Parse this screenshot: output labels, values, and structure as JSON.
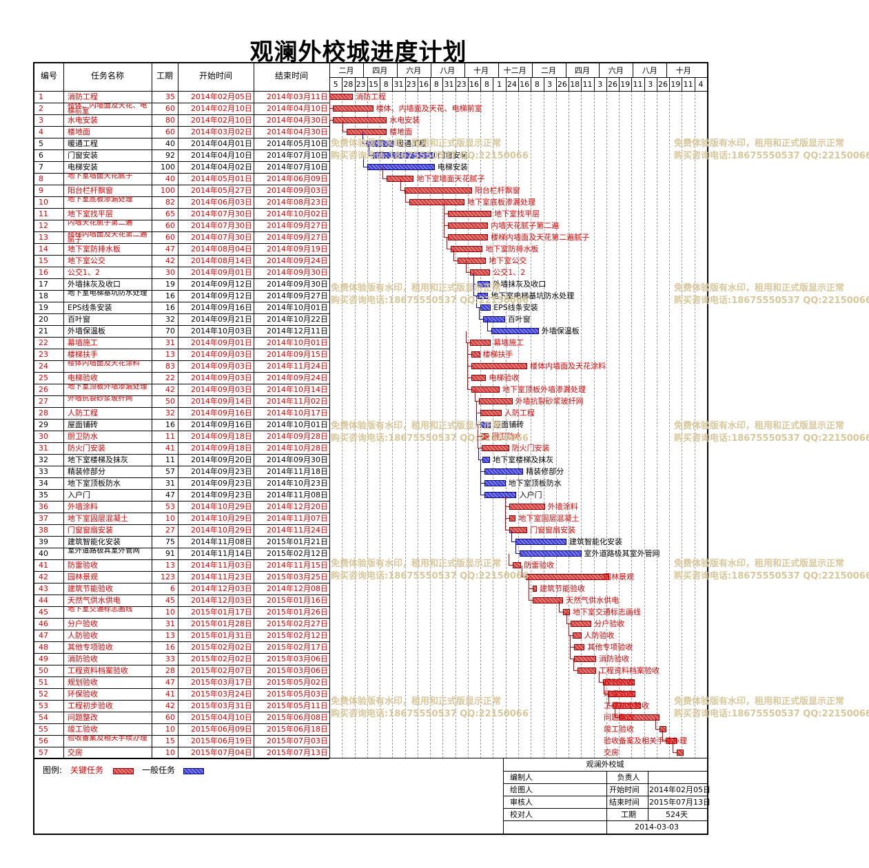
{
  "title": "观澜外校城进度计划",
  "colors": {
    "critical": "#d23b3b",
    "normal": "#3b3bd2",
    "critical_text": "#e00000",
    "normal_text": "#000000"
  },
  "headers": {
    "id": "编号",
    "name": "任务名称",
    "duration": "工期",
    "start": "开始时间",
    "end": "结束时间"
  },
  "timescale": {
    "months": [
      "二月",
      "四月",
      "六月",
      "八月",
      "十月",
      "十二月",
      "二月",
      "四月",
      "六月",
      "八月",
      "十月"
    ],
    "days": [
      "5",
      "28",
      "23",
      "15",
      "8",
      "31",
      "23",
      "16",
      "8",
      "31",
      "23",
      "16",
      "8",
      "1",
      "24",
      "16",
      "8",
      "3",
      "26",
      "18",
      "11",
      "3",
      "26",
      "19",
      "11",
      "3",
      "26",
      "19",
      "11",
      "4"
    ]
  },
  "chart_data": {
    "type": "gantt",
    "title": "观澜外校城进度计划",
    "tasks": [
      {
        "id": "1",
        "name": "消防工程",
        "duration": "35",
        "start": "2014年02月05日",
        "end": "2014年03月11日",
        "critical": true,
        "label": "消防工程"
      },
      {
        "id": "2",
        "name": "楼体、内墙面及天花、电梯前室",
        "duration": "60",
        "start": "2014年02月10日",
        "end": "2014年04月10日",
        "critical": true,
        "label": "楼体、内墙面及天花、电梯前室"
      },
      {
        "id": "3",
        "name": "水电安装",
        "duration": "80",
        "start": "2014年02月10日",
        "end": "2014年04月30日",
        "critical": true,
        "label": "水电安装"
      },
      {
        "id": "4",
        "name": "楼地面",
        "duration": "60",
        "start": "2014年03月02日",
        "end": "2014年04月30日",
        "critical": true,
        "label": "楼地面"
      },
      {
        "id": "5",
        "name": "暖通工程",
        "duration": "40",
        "start": "2014年04月01日",
        "end": "2014年05月10日",
        "critical": false,
        "label": "暖通工程"
      },
      {
        "id": "6",
        "name": "门窗安装",
        "duration": "92",
        "start": "2014年04月10日",
        "end": "2014年07月10日",
        "critical": false,
        "label": "门窗安装"
      },
      {
        "id": "7",
        "name": "电梯安装",
        "duration": "100",
        "start": "2014年04月02日",
        "end": "2014年07月10日",
        "critical": false,
        "label": "电梯安装"
      },
      {
        "id": "8",
        "name": "地下室墙面天花腻子",
        "duration": "40",
        "start": "2014年05月01日",
        "end": "2014年06月09日",
        "critical": true,
        "label": "地下室墙面天花腻子"
      },
      {
        "id": "9",
        "name": "阳台栏杆飘窗",
        "duration": "100",
        "start": "2014年05月27日",
        "end": "2014年09月03日",
        "critical": true,
        "label": "阳台栏杆飘窗"
      },
      {
        "id": "10",
        "name": "地下室底板渗漏处理",
        "duration": "82",
        "start": "2014年06月03日",
        "end": "2014年08月23日",
        "critical": true,
        "label": "地下室底板渗漏处理"
      },
      {
        "id": "11",
        "name": "地下室找平层",
        "duration": "65",
        "start": "2014年07月30日",
        "end": "2014年10月02日",
        "critical": true,
        "label": "地下室找平层"
      },
      {
        "id": "12",
        "name": "内墙天花腻子第二遍",
        "duration": "60",
        "start": "2014年07月30日",
        "end": "2014年09月27日",
        "critical": true,
        "label": "内墙天花腻子第二遍"
      },
      {
        "id": "13",
        "name": "楼梯内墙面及天花第二遍腻子",
        "duration": "60",
        "start": "2014年07月30日",
        "end": "2014年09月27日",
        "critical": true,
        "label": "楼梯内墙面及天花第二遍腻子"
      },
      {
        "id": "14",
        "name": "地下室防排水板",
        "duration": "47",
        "start": "2014年08月04日",
        "end": "2014年09月19日",
        "critical": true,
        "label": "地下室防排水板"
      },
      {
        "id": "15",
        "name": "地下室公交",
        "duration": "42",
        "start": "2014年08月14日",
        "end": "2014年09月24日",
        "critical": true,
        "label": "地下室公交"
      },
      {
        "id": "16",
        "name": "公交1、2",
        "duration": "30",
        "start": "2014年09月01日",
        "end": "2014年09月30日",
        "critical": true,
        "label": "公交1、2"
      },
      {
        "id": "17",
        "name": "外墙抹灰及收口",
        "duration": "19",
        "start": "2014年09月12日",
        "end": "2014年09月30日",
        "critical": false,
        "label": "外墙抹灰及收口"
      },
      {
        "id": "18",
        "name": "地下室电梯基坑防水处理",
        "duration": "16",
        "start": "2014年09月12日",
        "end": "2014年09月27日",
        "critical": false,
        "label": "地下室电梯基坑防水处理"
      },
      {
        "id": "19",
        "name": "EPS线条安装",
        "duration": "16",
        "start": "2014年09月16日",
        "end": "2014年10月01日",
        "critical": false,
        "label": "EPS线条安装"
      },
      {
        "id": "20",
        "name": "百叶窗",
        "duration": "32",
        "start": "2014年09月21日",
        "end": "2014年10月22日",
        "critical": false,
        "label": "百叶窗"
      },
      {
        "id": "21",
        "name": "外墙保温板",
        "duration": "70",
        "start": "2014年10月03日",
        "end": "2014年12月11日",
        "critical": false,
        "label": "外墙保温板"
      },
      {
        "id": "22",
        "name": "幕墙施工",
        "duration": "31",
        "start": "2014年09月01日",
        "end": "2014年10月01日",
        "critical": true,
        "label": "幕墙施工"
      },
      {
        "id": "23",
        "name": "楼梯扶手",
        "duration": "13",
        "start": "2014年09月03日",
        "end": "2014年09月15日",
        "critical": true,
        "label": "楼梯扶手"
      },
      {
        "id": "24",
        "name": "楼体内墙面及天花涂料",
        "duration": "83",
        "start": "2014年09月03日",
        "end": "2014年11月24日",
        "critical": true,
        "label": "楼体内墙面及天花涂料"
      },
      {
        "id": "25",
        "name": "电梯验收",
        "duration": "22",
        "start": "2014年09月03日",
        "end": "2014年09月24日",
        "critical": true,
        "label": "电梯验收"
      },
      {
        "id": "26",
        "name": "地下室顶板外墙渗漏处理",
        "duration": "42",
        "start": "2014年09月03日",
        "end": "2014年10月14日",
        "critical": true,
        "label": "地下室顶板外墙渗漏处理"
      },
      {
        "id": "27",
        "name": "外墙抗裂砂浆玻纤网",
        "duration": "50",
        "start": "2014年09月14日",
        "end": "2014年11月02日",
        "critical": true,
        "label": "外墙抗裂砂浆玻纤网"
      },
      {
        "id": "28",
        "name": "人防工程",
        "duration": "32",
        "start": "2014年09月16日",
        "end": "2014年10月17日",
        "critical": true,
        "label": "人防工程"
      },
      {
        "id": "29",
        "name": "屋面铺砖",
        "duration": "16",
        "start": "2014年09月16日",
        "end": "2014年10月01日",
        "critical": false,
        "label": "屋面铺砖"
      },
      {
        "id": "30",
        "name": "厨卫防水",
        "duration": "11",
        "start": "2014年09月18日",
        "end": "2014年09月28日",
        "critical": true,
        "label": "厨卫防水"
      },
      {
        "id": "31",
        "name": "防火门安装",
        "duration": "41",
        "start": "2014年09月18日",
        "end": "2014年10月28日",
        "critical": true,
        "label": "防火门安装"
      },
      {
        "id": "32",
        "name": "地下室楼梯及抹灰",
        "duration": "11",
        "start": "2014年09月20日",
        "end": "2014年09月30日",
        "critical": false,
        "label": "地下室楼梯及抹灰"
      },
      {
        "id": "33",
        "name": "精装修部分",
        "duration": "57",
        "start": "2014年09月23日",
        "end": "2014年11月18日",
        "critical": false,
        "label": "精装修部分"
      },
      {
        "id": "34",
        "name": "地下室顶板防水",
        "duration": "31",
        "start": "2014年09月23日",
        "end": "2014年10月23日",
        "critical": false,
        "label": "地下室顶板防水"
      },
      {
        "id": "35",
        "name": "入户门",
        "duration": "47",
        "start": "2014年09月23日",
        "end": "2014年11月08日",
        "critical": false,
        "label": "入户门"
      },
      {
        "id": "36",
        "name": "外墙涂料",
        "duration": "53",
        "start": "2014年10月29日",
        "end": "2014年12月20日",
        "critical": true,
        "label": "外墙涂料"
      },
      {
        "id": "37",
        "name": "地下室固层混凝土",
        "duration": "10",
        "start": "2014年10月29日",
        "end": "2014年11月07日",
        "critical": true,
        "label": "地下室固层混凝土"
      },
      {
        "id": "38",
        "name": "门窗窗扇安装",
        "duration": "27",
        "start": "2014年10月29日",
        "end": "2014年11月24日",
        "critical": true,
        "label": "门窗窗扇安装"
      },
      {
        "id": "39",
        "name": "建筑智能化安装",
        "duration": "75",
        "start": "2014年11月08日",
        "end": "2015年01月21日",
        "critical": false,
        "label": "建筑智能化安装"
      },
      {
        "id": "40",
        "name": "室外道路极其室外管网",
        "duration": "91",
        "start": "2014年11月14日",
        "end": "2015年02月12日",
        "critical": false,
        "label": "室外道路极其室外管网"
      },
      {
        "id": "41",
        "name": "防雷验收",
        "duration": "13",
        "start": "2014年11月03日",
        "end": "2014年11月15日",
        "critical": true,
        "label": "防雷验收"
      },
      {
        "id": "42",
        "name": "园林景观",
        "duration": "123",
        "start": "2014年11月23日",
        "end": "2015年03月25日",
        "critical": true,
        "label": "园林景观"
      },
      {
        "id": "43",
        "name": "建筑节能验收",
        "duration": "6",
        "start": "2014年12月03日",
        "end": "2014年12月08日",
        "critical": true,
        "label": "建筑节能验收"
      },
      {
        "id": "44",
        "name": "天然气供水供电",
        "duration": "45",
        "start": "2014年12月03日",
        "end": "2015年01月16日",
        "critical": true,
        "label": "天然气供水供电"
      },
      {
        "id": "45",
        "name": "地下室交通标志画线",
        "duration": "10",
        "start": "2015年01月17日",
        "end": "2015年01月26日",
        "critical": true,
        "label": "地下室交通标志画线"
      },
      {
        "id": "46",
        "name": "分户验收",
        "duration": "31",
        "start": "2015年01月28日",
        "end": "2015年02月27日",
        "critical": true,
        "label": "分户验收"
      },
      {
        "id": "47",
        "name": "人防验收",
        "duration": "13",
        "start": "2015年01月31日",
        "end": "2015年02月12日",
        "critical": true,
        "label": "人防验收"
      },
      {
        "id": "48",
        "name": "其他专项验收",
        "duration": "16",
        "start": "2015年02月02日",
        "end": "2015年02月17日",
        "critical": true,
        "label": "其他专项验收"
      },
      {
        "id": "49",
        "name": "消防验收",
        "duration": "33",
        "start": "2015年02月02日",
        "end": "2015年03月06日",
        "critical": true,
        "label": "消防验收"
      },
      {
        "id": "50",
        "name": "工程资料档案验收",
        "duration": "28",
        "start": "2015年02月07日",
        "end": "2015年03月06日",
        "critical": true,
        "label": "工程资料档案验收"
      },
      {
        "id": "51",
        "name": "规划验收",
        "duration": "47",
        "start": "2015年03月17日",
        "end": "2015年05月02日",
        "critical": true,
        "label": "规划验收"
      },
      {
        "id": "52",
        "name": "环保验收",
        "duration": "41",
        "start": "2015年03月24日",
        "end": "2015年05月03日",
        "critical": true,
        "label": "环保验收"
      },
      {
        "id": "53",
        "name": "工程初步验收",
        "duration": "42",
        "start": "2015年03月31日",
        "end": "2015年05月11日",
        "critical": true,
        "label": "工程初步验收"
      },
      {
        "id": "54",
        "name": "问题整改",
        "duration": "60",
        "start": "2015年04月10日",
        "end": "2015年06月08日",
        "critical": true,
        "label": "问题整改"
      },
      {
        "id": "55",
        "name": "竣工验收",
        "duration": "10",
        "start": "2015年06月09日",
        "end": "2015年06月18日",
        "critical": true,
        "label": "竣工验收"
      },
      {
        "id": "56",
        "name": "验收备案及相关手续办理",
        "duration": "15",
        "start": "2015年06月19日",
        "end": "2015年07月03日",
        "critical": true,
        "label": "验收备案及相关手续办理"
      },
      {
        "id": "57",
        "name": "交房",
        "duration": "10",
        "start": "2015年07月04日",
        "end": "2015年07月13日",
        "critical": true,
        "label": "交房"
      }
    ]
  },
  "watermark": {
    "line1": "免费体验版有水印，租用和正式版显示正常",
    "line2": "购买咨询电话:18675550537 QQ:22150066"
  },
  "legend": {
    "label": "图例:",
    "critical": "关键任务",
    "normal": "一般任务"
  },
  "info": {
    "project": "观澜外校城",
    "editor_label": "编制人",
    "owner_label": "负责人",
    "drafter_label": "绘图人",
    "start_label": "开始时间",
    "start_value": "2014年02月05日",
    "reviewer_label": "审核人",
    "end_label": "结束时间",
    "end_value": "2015年07月13日",
    "checker_label": "校对人",
    "duration_label": "工期",
    "duration_value": "524天",
    "date": "2014-03-03"
  }
}
